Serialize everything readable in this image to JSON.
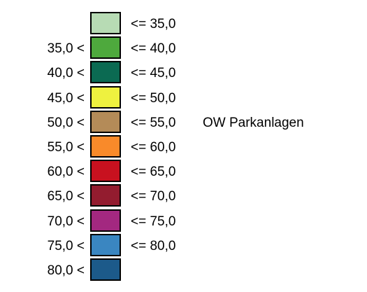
{
  "legend": {
    "label": "OW Parkanlagen",
    "classes": [
      {
        "lower": "",
        "upper": "<= 35,0",
        "color": "#b7dbb4"
      },
      {
        "lower": "35,0 <",
        "upper": "<= 40,0",
        "color": "#4ea93d"
      },
      {
        "lower": "40,0 <",
        "upper": "<= 45,0",
        "color": "#0b6a52"
      },
      {
        "lower": "45,0 <",
        "upper": "<= 50,0",
        "color": "#eef13f"
      },
      {
        "lower": "50,0 <",
        "upper": "<= 55,0",
        "color": "#b48b58"
      },
      {
        "lower": "55,0 <",
        "upper": "<= 60,0",
        "color": "#f98a2a"
      },
      {
        "lower": "60,0 <",
        "upper": "<= 65,0",
        "color": "#c8111f"
      },
      {
        "lower": "65,0 <",
        "upper": "<= 70,0",
        "color": "#931c2f"
      },
      {
        "lower": "70,0 <",
        "upper": "<= 75,0",
        "color": "#a32880"
      },
      {
        "lower": "75,0 <",
        "upper": "<= 80,0",
        "color": "#3a86c1"
      },
      {
        "lower": "80,0 <",
        "upper": "",
        "color": "#1c5a8a"
      }
    ]
  }
}
